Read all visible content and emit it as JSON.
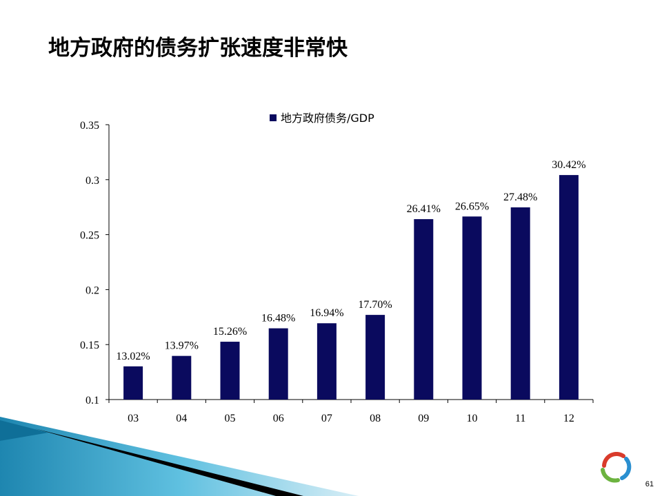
{
  "slide": {
    "title": "地方政府的债务扩张速度非常快",
    "page_number": "61"
  },
  "colors": {
    "bar": "#0a0a5e",
    "axis": "#000000",
    "decor_blue": "#3aa3c8",
    "decor_dark": "#000000"
  },
  "chart_data": {
    "type": "bar",
    "categories": [
      "03",
      "04",
      "05",
      "06",
      "07",
      "08",
      "09",
      "10",
      "11",
      "12"
    ],
    "series": [
      {
        "name": "地方政府债务/GDP",
        "values": [
          0.1302,
          0.1397,
          0.1526,
          0.1648,
          0.1694,
          0.177,
          0.2641,
          0.2665,
          0.2748,
          0.3042
        ],
        "data_labels": [
          "13.02%",
          "13.97%",
          "15.26%",
          "16.48%",
          "16.94%",
          "17.70%",
          "26.41%",
          "26.65%",
          "27.48%",
          "30.42%"
        ]
      }
    ],
    "yticks": [
      "0.1",
      "0.15",
      "0.2",
      "0.25",
      "0.3",
      "0.35"
    ],
    "ylim": [
      0.1,
      0.35
    ],
    "grid": false,
    "legend_position": "top"
  }
}
